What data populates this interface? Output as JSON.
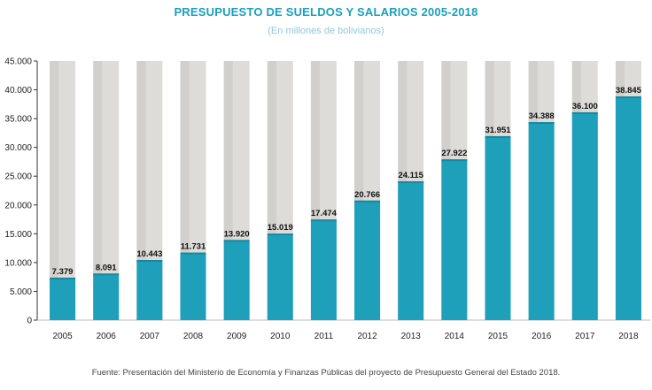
{
  "title": "PRESUPUESTO DE SUELDOS Y SALARIOS 2005-2018",
  "subtitle": "(En millones de bolivianos)",
  "source": "Fuente: Presentación del Ministerio de Economía y Finanzas Públicas del proyecto de Presupuesto General del Estado 2018.",
  "colors": {
    "bar": "#1e9fba",
    "bar_top": "#1689a2",
    "track": "#dedcd9",
    "track_shade": "#c9c6c2",
    "title": "#1aa0bd"
  },
  "chart_data": {
    "type": "bar",
    "title": "PRESUPUESTO DE SUELDOS Y SALARIOS 2005-2018",
    "subtitle": "(En millones de bolivianos)",
    "categories": [
      "2005",
      "2006",
      "2007",
      "2008",
      "2009",
      "2010",
      "2011",
      "2012",
      "2013",
      "2014",
      "2015",
      "2016",
      "2017",
      "2018"
    ],
    "values": [
      7379,
      8091,
      10443,
      11731,
      13920,
      15019,
      17474,
      20766,
      24115,
      27922,
      31951,
      34388,
      36100,
      38845
    ],
    "value_labels": [
      "7.379",
      "8.091",
      "10.443",
      "11.731",
      "13.920",
      "15.019",
      "17.474",
      "20.766",
      "24.115",
      "27.922",
      "31.951",
      "34.388",
      "36.100",
      "38.845"
    ],
    "ylim": [
      0,
      45000
    ],
    "yticks": [
      0,
      5000,
      10000,
      15000,
      20000,
      25000,
      30000,
      35000,
      40000,
      45000
    ],
    "ytick_labels": [
      "0",
      "5.000",
      "10.000",
      "15.000",
      "20.000",
      "25.000",
      "30.000",
      "35.000",
      "40.000",
      "45.000"
    ],
    "xlabel": "",
    "ylabel": "",
    "grid": false,
    "legend": "none"
  }
}
